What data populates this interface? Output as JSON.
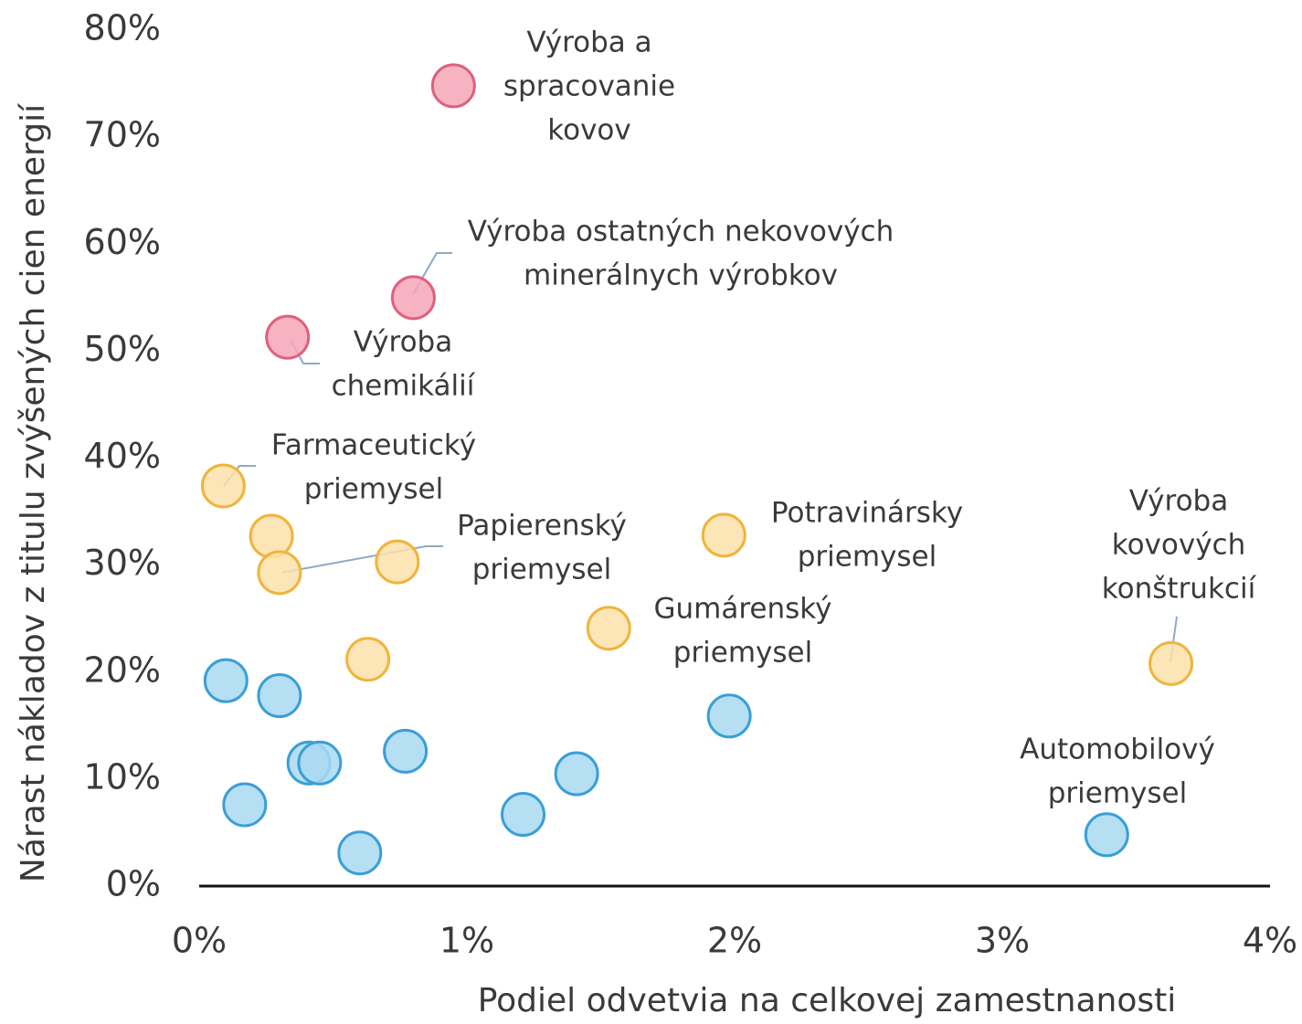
{
  "chart_data": {
    "type": "scatter",
    "xlabel": "Podiel odvetvia na celkovej zamestnanosti",
    "ylabel": "Nárast nákladov z titulu zvýšených cien energií",
    "xlim": [
      0,
      4
    ],
    "ylim": [
      0,
      80
    ],
    "xticks": [
      {
        "value": 0,
        "label": "0%"
      },
      {
        "value": 1,
        "label": "1%"
      },
      {
        "value": 2,
        "label": "2%"
      },
      {
        "value": 3,
        "label": "3%"
      },
      {
        "value": 4,
        "label": "4%"
      }
    ],
    "yticks": [
      {
        "value": 0,
        "label": "0%"
      },
      {
        "value": 10,
        "label": "10%"
      },
      {
        "value": 20,
        "label": "20%"
      },
      {
        "value": 30,
        "label": "30%"
      },
      {
        "value": 40,
        "label": "40%"
      },
      {
        "value": 50,
        "label": "50%"
      },
      {
        "value": 60,
        "label": "60%"
      },
      {
        "value": 70,
        "label": "70%"
      },
      {
        "value": 80,
        "label": "80%"
      }
    ],
    "series": [
      {
        "color": "#f4a7b9",
        "stroke": "#e0607e",
        "x": [
          0.95,
          0.8,
          0.33
        ],
        "values": [
          74.8,
          55.0,
          51.3
        ]
      },
      {
        "color": "#fbe1aa",
        "stroke": "#efb53a",
        "x": [
          0.09,
          0.27,
          0.3,
          0.74,
          0.63,
          1.53,
          1.96,
          3.63
        ],
        "values": [
          37.4,
          32.7,
          29.3,
          30.3,
          21.2,
          24.1,
          32.8,
          20.8
        ]
      },
      {
        "color": "#a9d9f1",
        "stroke": "#3a9fd6",
        "x": [
          0.1,
          0.3,
          0.41,
          0.45,
          0.17,
          0.77,
          0.6,
          1.21,
          1.41,
          1.98,
          3.39
        ],
        "values": [
          19.2,
          17.8,
          11.5,
          11.5,
          7.6,
          12.6,
          3.1,
          6.7,
          10.5,
          15.9,
          4.8
        ]
      }
    ],
    "annotations": [
      {
        "text": [
          "Výroba a",
          "spracovanie",
          "kovov"
        ]
      },
      {
        "text": [
          "Výroba ostatných nekovových",
          "minerálnych výrobkov"
        ]
      },
      {
        "text": [
          "Výroba",
          "chemikálií"
        ]
      },
      {
        "text": [
          "Farmaceutický",
          "priemysel"
        ]
      },
      {
        "text": [
          "Papierenský",
          "priemysel"
        ]
      },
      {
        "text": [
          "Potravinársky",
          "priemysel"
        ]
      },
      {
        "text": [
          "Gumárenský",
          "priemysel"
        ]
      },
      {
        "text": [
          "Výroba",
          "kovových",
          "konštrukcií"
        ]
      },
      {
        "text": [
          "Automobilový",
          "priemysel"
        ]
      }
    ]
  }
}
